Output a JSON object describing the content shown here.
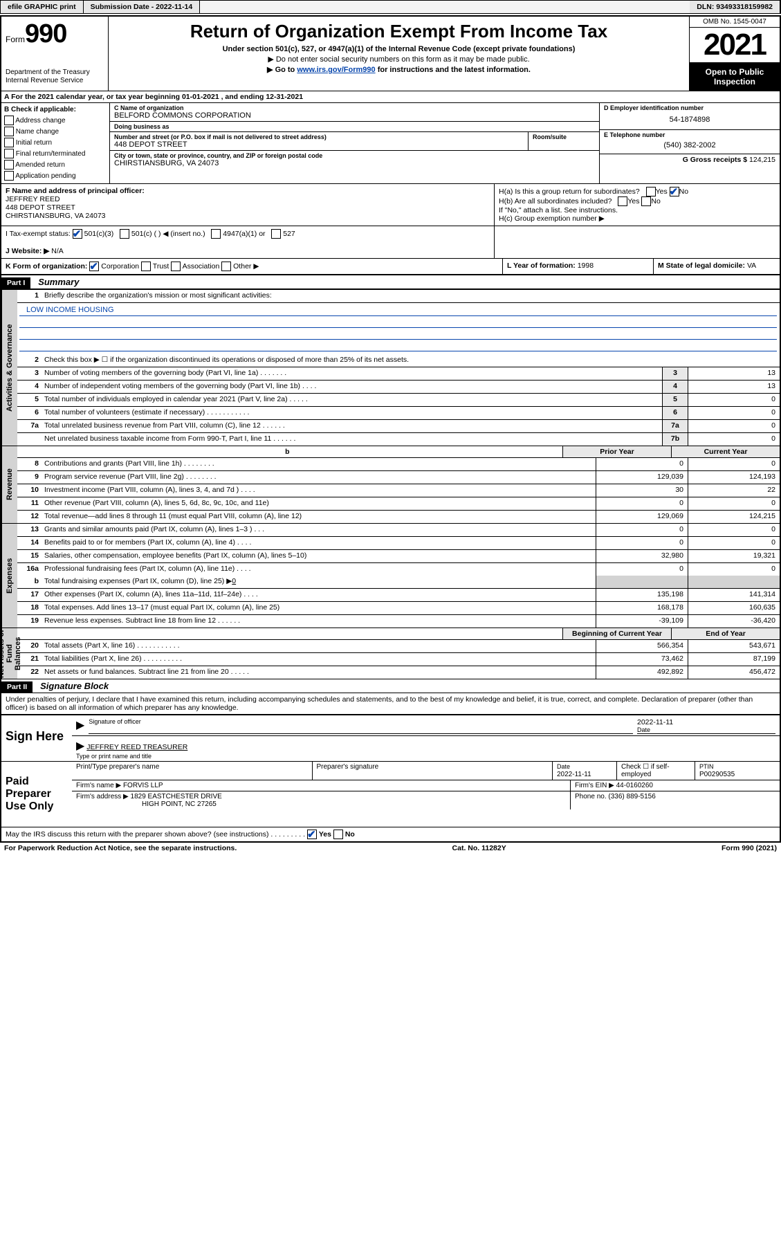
{
  "topbar": {
    "efile": "efile GRAPHIC print",
    "submission_label": "Submission Date - 2022-11-14",
    "dln": "DLN: 93493318159982"
  },
  "header": {
    "form_word": "Form",
    "form_number": "990",
    "dept1": "Department of the Treasury",
    "dept2": "Internal Revenue Service",
    "title": "Return of Organization Exempt From Income Tax",
    "sub1": "Under section 501(c), 527, or 4947(a)(1) of the Internal Revenue Code (except private foundations)",
    "sub2": "▶ Do not enter social security numbers on this form as it may be made public.",
    "sub3_pre": "▶ Go to ",
    "sub3_link": "www.irs.gov/Form990",
    "sub3_post": " for instructions and the latest information.",
    "omb": "OMB No. 1545-0047",
    "year": "2021",
    "open1": "Open to Public",
    "open2": "Inspection"
  },
  "rowA": "A  For the 2021 calendar year, or tax year beginning 01-01-2021    , and ending 12-31-2021",
  "colB": {
    "head": "B Check if applicable:",
    "items": [
      "Address change",
      "Name change",
      "Initial return",
      "Final return/terminated",
      "Amended return",
      "Application pending"
    ]
  },
  "colC": {
    "name_label": "C Name of organization",
    "name": "BELFORD COMMONS CORPORATION",
    "dba_label": "Doing business as",
    "dba": "",
    "street_label": "Number and street (or P.O. box if mail is not delivered to street address)",
    "street": "448 DEPOT STREET",
    "suite_label": "Room/suite",
    "city_label": "City or town, state or province, country, and ZIP or foreign postal code",
    "city": "CHIRSTIANSBURG, VA  24073"
  },
  "colD": {
    "ein_label": "D Employer identification number",
    "ein": "54-1874898",
    "tel_label": "E Telephone number",
    "tel": "(540) 382-2002",
    "gross_label": "G Gross receipts $",
    "gross": "124,215"
  },
  "rowF": {
    "label": "F  Name and address of principal officer:",
    "name": "JEFFREY REED",
    "street": "448 DEPOT STREET",
    "city": "CHIRSTIANSBURG, VA  24073"
  },
  "rowH": {
    "a_label": "H(a)  Is this a group return for subordinates?",
    "b_label": "H(b)  Are all subordinates included?",
    "b_note": "If \"No,\" attach a list. See instructions.",
    "c_label": "H(c)  Group exemption number ▶"
  },
  "rowI": {
    "label": "I    Tax-exempt status:",
    "o501c3": "501(c)(3)",
    "o501c": "501(c) (   ) ◀ (insert no.)",
    "o4947": "4947(a)(1) or",
    "o527": "527"
  },
  "rowJ": {
    "label": "J    Website: ▶",
    "val": "N/A"
  },
  "rowK": {
    "label": "K Form of organization:",
    "corp": "Corporation",
    "trust": "Trust",
    "assoc": "Association",
    "other": "Other ▶"
  },
  "rowL": {
    "label": "L Year of formation:",
    "val": "1998"
  },
  "rowM": {
    "label": "M State of legal domicile:",
    "val": "VA"
  },
  "part1": {
    "hdr": "Part I",
    "title": "Summary",
    "l1": "Briefly describe the organization's mission or most significant activities:",
    "mission": "LOW INCOME HOUSING",
    "l2": "Check this box ▶ ☐  if the organization discontinued its operations or disposed of more than 25% of its net assets.",
    "lines": [
      {
        "n": "3",
        "t": "Number of voting members of the governing body (Part VI, line 1a)   .   .   .   .   .   .   .",
        "b": "3",
        "v": "13"
      },
      {
        "n": "4",
        "t": "Number of independent voting members of the governing body (Part VI, line 1b)   .   .   .   .",
        "b": "4",
        "v": "13"
      },
      {
        "n": "5",
        "t": "Total number of individuals employed in calendar year 2021 (Part V, line 2a)  .   .   .   .   .",
        "b": "5",
        "v": "0"
      },
      {
        "n": "6",
        "t": "Total number of volunteers (estimate if necessary)  .   .   .   .   .   .   .   .   .   .   .",
        "b": "6",
        "v": "0"
      },
      {
        "n": "7a",
        "t": "Total unrelated business revenue from Part VIII, column (C), line 12  .   .   .   .   .   .",
        "b": "7a",
        "v": "0"
      },
      {
        "n": "",
        "t": "Net unrelated business taxable income from Form 990-T, Part I, line 11  .   .   .   .   .   .",
        "b": "7b",
        "v": "0"
      }
    ],
    "prior": "Prior Year",
    "current": "Current Year",
    "rev": [
      {
        "n": "8",
        "t": "Contributions and grants (Part VIII, line 1h)   .   .   .   .   .   .   .   .",
        "p": "0",
        "c": "0"
      },
      {
        "n": "9",
        "t": "Program service revenue (Part VIII, line 2g)   .   .   .   .   .   .   .   .",
        "p": "129,039",
        "c": "124,193"
      },
      {
        "n": "10",
        "t": "Investment income (Part VIII, column (A), lines 3, 4, and 7d )   .   .   .   .",
        "p": "30",
        "c": "22"
      },
      {
        "n": "11",
        "t": "Other revenue (Part VIII, column (A), lines 5, 6d, 8c, 9c, 10c, and 11e)",
        "p": "0",
        "c": "0"
      },
      {
        "n": "12",
        "t": "Total revenue—add lines 8 through 11 (must equal Part VIII, column (A), line 12)",
        "p": "129,069",
        "c": "124,215"
      }
    ],
    "exp": [
      {
        "n": "13",
        "t": "Grants and similar amounts paid (Part IX, column (A), lines 1–3 )   .   .   .",
        "p": "0",
        "c": "0"
      },
      {
        "n": "14",
        "t": "Benefits paid to or for members (Part IX, column (A), line 4)   .   .   .   .",
        "p": "0",
        "c": "0"
      },
      {
        "n": "15",
        "t": "Salaries, other compensation, employee benefits (Part IX, column (A), lines 5–10)",
        "p": "32,980",
        "c": "19,321"
      },
      {
        "n": "16a",
        "t": "Professional fundraising fees (Part IX, column (A), line 11e)   .   .   .   .",
        "p": "0",
        "c": "0"
      }
    ],
    "l16b_pre": "Total fundraising expenses (Part IX, column (D), line 25) ▶",
    "l16b_val": "0",
    "exp2": [
      {
        "n": "17",
        "t": "Other expenses (Part IX, column (A), lines 11a–11d, 11f–24e)   .   .   .   .",
        "p": "135,198",
        "c": "141,314"
      },
      {
        "n": "18",
        "t": "Total expenses. Add lines 13–17 (must equal Part IX, column (A), line 25)",
        "p": "168,178",
        "c": "160,635"
      },
      {
        "n": "19",
        "t": "Revenue less expenses. Subtract line 18 from line 12  .   .   .   .   .   .",
        "p": "-39,109",
        "c": "-36,420"
      }
    ],
    "begin": "Beginning of Current Year",
    "end": "End of Year",
    "net": [
      {
        "n": "20",
        "t": "Total assets (Part X, line 16)   .   .   .   .   .   .   .   .   .   .   .",
        "p": "566,354",
        "c": "543,671"
      },
      {
        "n": "21",
        "t": "Total liabilities (Part X, line 26)   .   .   .   .   .   .   .   .   .   .",
        "p": "73,462",
        "c": "87,199"
      },
      {
        "n": "22",
        "t": "Net assets or fund balances. Subtract line 21 from line 20  .   .   .   .   .",
        "p": "492,892",
        "c": "456,472"
      }
    ]
  },
  "vtabs": {
    "gov": "Activities & Governance",
    "rev": "Revenue",
    "exp": "Expenses",
    "net": "Net Assets or Fund Balances"
  },
  "part2": {
    "hdr": "Part II",
    "title": "Signature Block",
    "decl": "Under penalties of perjury, I declare that I have examined this return, including accompanying schedules and statements, and to the best of my knowledge and belief, it is true, correct, and complete. Declaration of preparer (other than officer) is based on all information of which preparer has any knowledge."
  },
  "sign": {
    "here": "Sign Here",
    "date": "2022-11-11",
    "sig_label": "Signature of officer",
    "date_label": "Date",
    "name": "JEFFREY REED TREASURER",
    "name_label": "Type or print name and title"
  },
  "prep": {
    "head": "Paid Preparer Use Only",
    "col1": "Print/Type preparer's name",
    "col2": "Preparer's signature",
    "col3_label": "Date",
    "col3_val": "2022-11-11",
    "col4": "Check ☐ if self-employed",
    "col5_label": "PTIN",
    "col5_val": "P00290535",
    "firm_label": "Firm's name      ▶",
    "firm_name": "FORVIS LLP",
    "ein_label": "Firm's EIN ▶",
    "ein_val": "44-0160260",
    "addr_label": "Firm's address ▶",
    "addr1": "1829 EASTCHESTER DRIVE",
    "addr2": "HIGH POINT, NC  27265",
    "phone_label": "Phone no.",
    "phone_val": "(336) 889-5156"
  },
  "discuss": {
    "text": "May the IRS discuss this return with the preparer shown above? (see instructions)   .   .   .   .   .   .   .   .   .",
    "yes": "Yes",
    "no": "No"
  },
  "footer": {
    "left": "For Paperwork Reduction Act Notice, see the separate instructions.",
    "mid": "Cat. No. 11282Y",
    "right": "Form 990 (2021)"
  }
}
